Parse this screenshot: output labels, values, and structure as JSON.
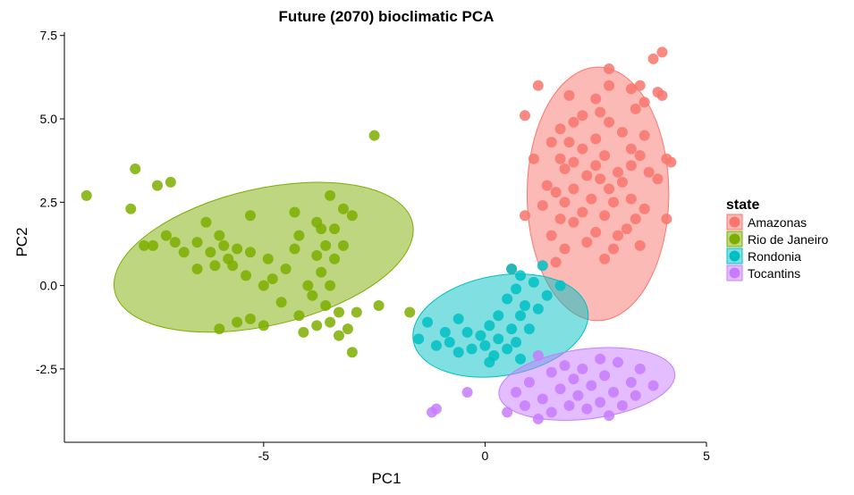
{
  "chart_data": {
    "type": "scatter",
    "title": "Future (2070) bioclimatic PCA",
    "xlabel": "PC1",
    "ylabel": "PC2",
    "xlim": [
      -9.5,
      5.0
    ],
    "ylim": [
      -4.7,
      7.6
    ],
    "xticks": [
      {
        "v": -5,
        "label": "-5"
      },
      {
        "v": 0,
        "label": "0"
      },
      {
        "v": 5,
        "label": "5"
      }
    ],
    "yticks": [
      {
        "v": -2.5,
        "label": "-2.5"
      },
      {
        "v": 0,
        "label": "0.0"
      },
      {
        "v": 2.5,
        "label": "2.5"
      },
      {
        "v": 5,
        "label": "5.0"
      },
      {
        "v": 7.5,
        "label": "7.5"
      }
    ],
    "grid": false,
    "legend": {
      "title": "state",
      "position": "right"
    },
    "series": [
      {
        "name": "Amazonas",
        "color": "#F8766D",
        "ellipse": {
          "cx": 2.55,
          "cy": 2.75,
          "rx": 1.6,
          "ry": 3.8,
          "angle": 0.2
        },
        "points": [
          [
            4.0,
            7.0
          ],
          [
            3.8,
            6.8
          ],
          [
            2.8,
            6.5
          ],
          [
            3.5,
            6.0
          ],
          [
            1.2,
            6.0
          ],
          [
            2.8,
            6.0
          ],
          [
            3.3,
            5.9
          ],
          [
            3.9,
            5.8
          ],
          [
            1.9,
            5.7
          ],
          [
            2.5,
            5.6
          ],
          [
            4.0,
            5.7
          ],
          [
            3.6,
            5.5
          ],
          [
            2.6,
            5.2
          ],
          [
            3.4,
            5.3
          ],
          [
            0.9,
            5.1
          ],
          [
            2.2,
            5.1
          ],
          [
            2.8,
            4.9
          ],
          [
            2.0,
            4.9
          ],
          [
            1.7,
            4.7
          ],
          [
            3.1,
            4.6
          ],
          [
            2.5,
            4.4
          ],
          [
            3.6,
            4.5
          ],
          [
            1.9,
            4.3
          ],
          [
            1.5,
            4.3
          ],
          [
            2.2,
            4.1
          ],
          [
            3.3,
            4.1
          ],
          [
            2.7,
            3.9
          ],
          [
            3.5,
            3.9
          ],
          [
            1.7,
            3.8
          ],
          [
            2.0,
            3.7
          ],
          [
            4.1,
            3.8
          ],
          [
            4.2,
            3.7
          ],
          [
            2.5,
            3.6
          ],
          [
            3.3,
            3.6
          ],
          [
            1.1,
            3.8
          ],
          [
            1.8,
            3.5
          ],
          [
            3.0,
            3.4
          ],
          [
            3.7,
            3.4
          ],
          [
            2.3,
            3.3
          ],
          [
            2.6,
            3.2
          ],
          [
            1.4,
            3.0
          ],
          [
            3.1,
            3.1
          ],
          [
            3.9,
            3.2
          ],
          [
            2.0,
            2.9
          ],
          [
            2.8,
            2.9
          ],
          [
            1.6,
            2.8
          ],
          [
            3.3,
            2.6
          ],
          [
            2.4,
            2.6
          ],
          [
            1.8,
            2.5
          ],
          [
            2.9,
            2.5
          ],
          [
            3.6,
            2.3
          ],
          [
            1.3,
            2.4
          ],
          [
            2.2,
            2.2
          ],
          [
            2.7,
            2.1
          ],
          [
            0.9,
            2.1
          ],
          [
            3.4,
            2.0
          ],
          [
            4.1,
            2.0
          ],
          [
            1.7,
            2.0
          ],
          [
            2.0,
            1.9
          ],
          [
            3.2,
            1.7
          ],
          [
            2.5,
            1.6
          ],
          [
            3.0,
            1.5
          ],
          [
            1.5,
            1.5
          ],
          [
            2.3,
            1.3
          ],
          [
            1.8,
            1.1
          ],
          [
            2.9,
            1.1
          ],
          [
            3.5,
            1.2
          ],
          [
            2.7,
            0.8
          ],
          [
            1.6,
            0.7
          ],
          [
            0.6,
            0.5
          ]
        ]
      },
      {
        "name": "Rio de Janeiro",
        "color": "#7CAE00",
        "ellipse": {
          "cx": -5.0,
          "cy": 0.85,
          "rx": 3.45,
          "ry": 2.05,
          "angle": -13
        },
        "points": [
          [
            -9.0,
            2.7
          ],
          [
            -7.9,
            3.5
          ],
          [
            -7.4,
            3.0
          ],
          [
            -7.1,
            3.1
          ],
          [
            -8.0,
            2.3
          ],
          [
            -2.5,
            4.5
          ],
          [
            -3.5,
            2.7
          ],
          [
            -3.2,
            2.3
          ],
          [
            -4.3,
            2.2
          ],
          [
            -3.0,
            2.1
          ],
          [
            -5.3,
            2.1
          ],
          [
            -3.8,
            1.9
          ],
          [
            -6.3,
            1.9
          ],
          [
            -3.7,
            1.7
          ],
          [
            -4.2,
            1.5
          ],
          [
            -3.4,
            1.7
          ],
          [
            -6.0,
            1.5
          ],
          [
            -7.2,
            1.5
          ],
          [
            -7.0,
            1.3
          ],
          [
            -6.5,
            1.3
          ],
          [
            -5.9,
            1.2
          ],
          [
            -3.2,
            1.2
          ],
          [
            -3.6,
            1.2
          ],
          [
            -4.3,
            1.1
          ],
          [
            -5.6,
            1.1
          ],
          [
            -7.7,
            1.2
          ],
          [
            -7.5,
            1.2
          ],
          [
            -6.8,
            1.0
          ],
          [
            -6.2,
            1.0
          ],
          [
            -5.3,
            1.0
          ],
          [
            -3.8,
            0.9
          ],
          [
            -3.4,
            0.8
          ],
          [
            -5.8,
            0.8
          ],
          [
            -4.9,
            0.8
          ],
          [
            -6.1,
            0.6
          ],
          [
            -5.7,
            0.6
          ],
          [
            -4.5,
            0.5
          ],
          [
            -6.5,
            0.5
          ],
          [
            -3.7,
            0.4
          ],
          [
            -5.4,
            0.3
          ],
          [
            -4.8,
            0.2
          ],
          [
            -5.0,
            0.0
          ],
          [
            -4.0,
            0.0
          ],
          [
            -3.5,
            0.0
          ],
          [
            -3.9,
            -0.3
          ],
          [
            -4.6,
            -0.5
          ],
          [
            -3.6,
            -0.6
          ],
          [
            -3.3,
            -0.8
          ],
          [
            -2.9,
            -0.8
          ],
          [
            -4.2,
            -0.9
          ],
          [
            -3.5,
            -1.1
          ],
          [
            -5.3,
            -1.0
          ],
          [
            -5.0,
            -1.2
          ],
          [
            -3.8,
            -1.2
          ],
          [
            -6.0,
            -1.3
          ],
          [
            -3.1,
            -1.3
          ],
          [
            -5.6,
            -1.1
          ],
          [
            -4.1,
            -1.4
          ],
          [
            -3.3,
            -1.5
          ],
          [
            -3.0,
            -2.0
          ],
          [
            -2.4,
            -0.6
          ],
          [
            -1.7,
            -0.8
          ]
        ]
      },
      {
        "name": "Rondonia",
        "color": "#00BFC4",
        "ellipse": {
          "cx": 0.35,
          "cy": -1.2,
          "rx": 2.0,
          "ry": 1.5,
          "angle": -10
        },
        "points": [
          [
            1.3,
            0.6
          ],
          [
            0.6,
            0.5
          ],
          [
            0.8,
            0.3
          ],
          [
            1.1,
            0.1
          ],
          [
            1.7,
            0.0
          ],
          [
            0.7,
            -0.1
          ],
          [
            1.4,
            -0.3
          ],
          [
            0.5,
            -0.4
          ],
          [
            0.9,
            -0.6
          ],
          [
            1.2,
            -0.7
          ],
          [
            0.3,
            -0.9
          ],
          [
            0.8,
            -0.9
          ],
          [
            -0.6,
            -1.0
          ],
          [
            -1.3,
            -1.1
          ],
          [
            0.1,
            -1.2
          ],
          [
            0.6,
            -1.3
          ],
          [
            -0.9,
            -1.4
          ],
          [
            -0.4,
            -1.4
          ],
          [
            1.0,
            -1.3
          ],
          [
            -0.1,
            -1.5
          ],
          [
            -1.5,
            -1.6
          ],
          [
            0.3,
            -1.6
          ],
          [
            0.7,
            -1.7
          ],
          [
            -0.8,
            -1.7
          ],
          [
            -1.1,
            -1.8
          ],
          [
            0.0,
            -1.8
          ],
          [
            0.5,
            -1.9
          ],
          [
            -0.6,
            -2.0
          ],
          [
            0.2,
            -2.1
          ],
          [
            0.8,
            -2.2
          ],
          [
            -0.3,
            -1.9
          ],
          [
            0.1,
            -2.3
          ]
        ]
      },
      {
        "name": "Tocantins",
        "color": "#C77CFF",
        "ellipse": {
          "cx": 2.3,
          "cy": -2.95,
          "rx": 2.0,
          "ry": 1.05,
          "angle": -7
        },
        "points": [
          [
            1.2,
            -2.1
          ],
          [
            2.6,
            -2.2
          ],
          [
            1.8,
            -2.4
          ],
          [
            3.0,
            -2.3
          ],
          [
            2.2,
            -2.5
          ],
          [
            3.5,
            -2.5
          ],
          [
            1.5,
            -2.6
          ],
          [
            2.7,
            -2.7
          ],
          [
            2.0,
            -2.8
          ],
          [
            3.3,
            -2.9
          ],
          [
            1.0,
            -2.9
          ],
          [
            2.4,
            -3.0
          ],
          [
            3.8,
            -3.0
          ],
          [
            1.7,
            -3.1
          ],
          [
            2.9,
            -3.2
          ],
          [
            0.7,
            -3.2
          ],
          [
            2.1,
            -3.3
          ],
          [
            3.4,
            -3.3
          ],
          [
            1.3,
            -3.4
          ],
          [
            2.6,
            -3.5
          ],
          [
            0.9,
            -3.6
          ],
          [
            1.9,
            -3.6
          ],
          [
            3.1,
            -3.6
          ],
          [
            2.3,
            -3.7
          ],
          [
            0.5,
            -3.8
          ],
          [
            1.5,
            -3.8
          ],
          [
            2.8,
            -3.9
          ],
          [
            1.2,
            -4.0
          ],
          [
            -1.1,
            -3.7
          ],
          [
            -1.2,
            -3.8
          ],
          [
            -0.4,
            -3.2
          ]
        ]
      }
    ]
  }
}
